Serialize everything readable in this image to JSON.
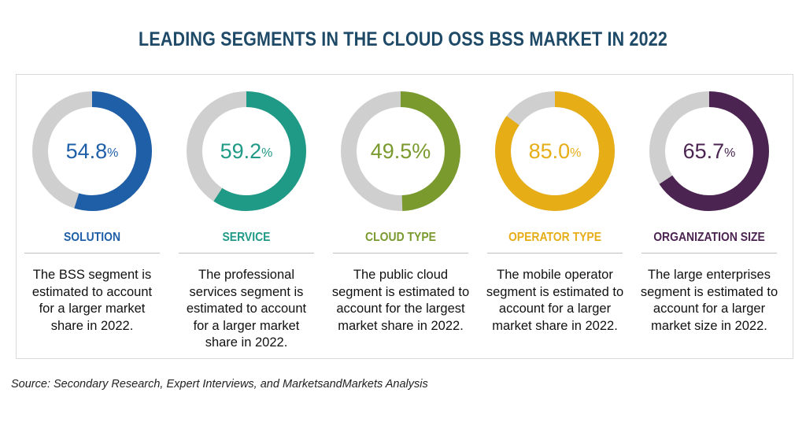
{
  "title": "LEADING SEGMENTS IN THE CLOUD OSS BSS MARKET IN 2022",
  "source": "Source: Secondary Research, Expert Interviews, and MarketsandMarkets Analysis",
  "colors": {
    "track": "#cfcfcf",
    "title": "#1e4a68"
  },
  "chart_data": {
    "type": "pie",
    "unit": "%",
    "items": [
      {
        "value": 54.8,
        "value_text": "54.8",
        "unit": "%",
        "label": "SOLUTION",
        "color": "#1f5fa8",
        "desc": "The BSS segment is estimated to account for a larger market share in 2022."
      },
      {
        "value": 59.2,
        "value_text": "59.2",
        "unit": "%",
        "label": "SERVICE",
        "color": "#1f9a86",
        "desc": "The professional services segment is estimated to account for a larger market share in 2022."
      },
      {
        "value": 49.5,
        "value_text": "49.5%",
        "unit": "",
        "label": "CLOUD TYPE",
        "color": "#7a9a2e",
        "desc": "The public cloud segment is estimated to account for the largest market share in 2022."
      },
      {
        "value": 85.0,
        "value_text": "85.0",
        "unit": "%",
        "label": "OPERATOR TYPE",
        "color": "#e6ad17",
        "desc": "The mobile operator segment is estimated to account for a larger market share in 2022."
      },
      {
        "value": 65.7,
        "value_text": "65.7",
        "unit": "%",
        "label": "ORGANIZATION SIZE",
        "color": "#4b2452",
        "desc": "The large enterprises segment is estimated to account for a larger market size in 2022."
      }
    ]
  }
}
